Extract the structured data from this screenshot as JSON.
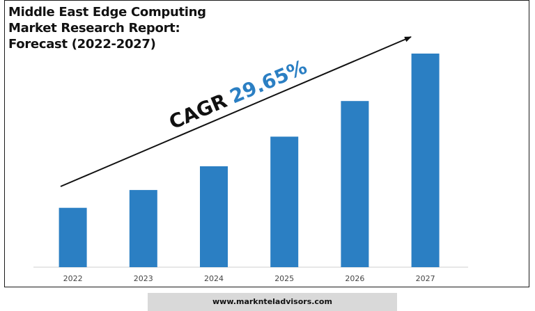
{
  "title": "Middle East Edge Computing\nMarket Research Report:\nForecast (2022-2027)",
  "cagr": {
    "label": "CAGR",
    "value": "29.65%"
  },
  "footer": {
    "url": "www.marknteladvisors.com"
  },
  "colors": {
    "bar": "#2b7fc3",
    "cagr_value": "#2b7fc3",
    "text": "#111111",
    "footer_bg": "#d9d9d9"
  },
  "chart_data": {
    "type": "bar",
    "categories": [
      "2022",
      "2023",
      "2024",
      "2025",
      "2026",
      "2027"
    ],
    "values": [
      1.0,
      1.3,
      1.7,
      2.2,
      2.8,
      3.6
    ],
    "ylim": [
      0,
      3.6
    ],
    "grid": false,
    "legend": "none",
    "annotation": "CAGR 29.65%"
  }
}
